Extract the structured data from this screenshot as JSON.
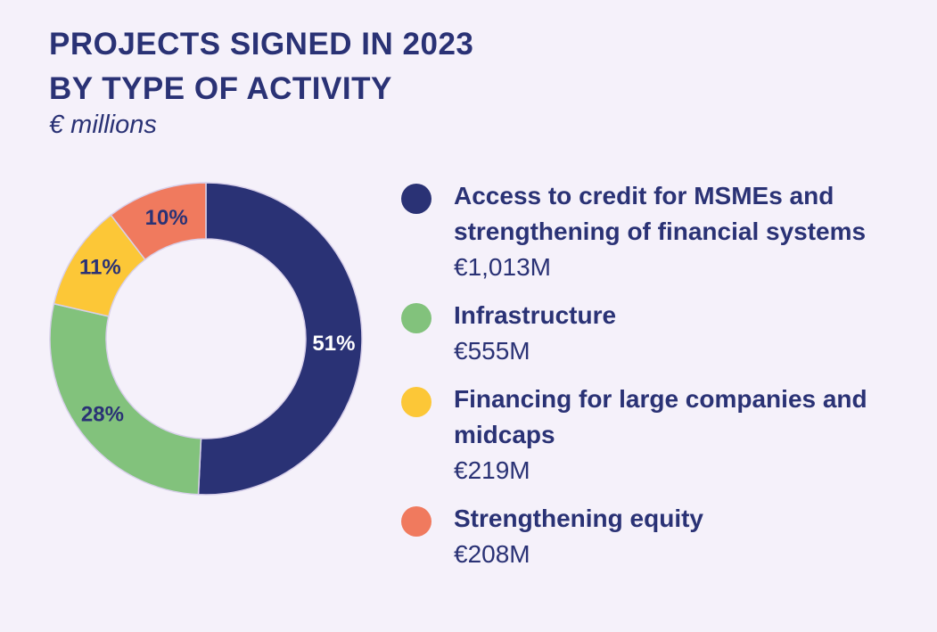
{
  "chart_data": {
    "type": "donut",
    "title": [
      "PROJECTS SIGNED IN 2023",
      "BY TYPE OF ACTIVITY"
    ],
    "subtitle": "€ millions",
    "categories": [
      "Access to credit for MSMEs and strengthening of financial systems",
      "Infrastructure",
      "Financing for large companies and midcaps",
      "Strengthening equity"
    ],
    "values": [
      1013,
      555,
      219,
      208
    ],
    "value_labels": [
      "€1,013M",
      "€555M",
      "€219M",
      "€208M"
    ],
    "shares": [
      {
        "value": 51,
        "label": "51%"
      },
      {
        "value": 28,
        "label": "28%"
      },
      {
        "value": 11,
        "label": "11%"
      },
      {
        "value": 10,
        "label": "10%"
      }
    ],
    "colors": [
      "#2a3275",
      "#82c27c",
      "#fcc737",
      "#f07a5e"
    ]
  }
}
